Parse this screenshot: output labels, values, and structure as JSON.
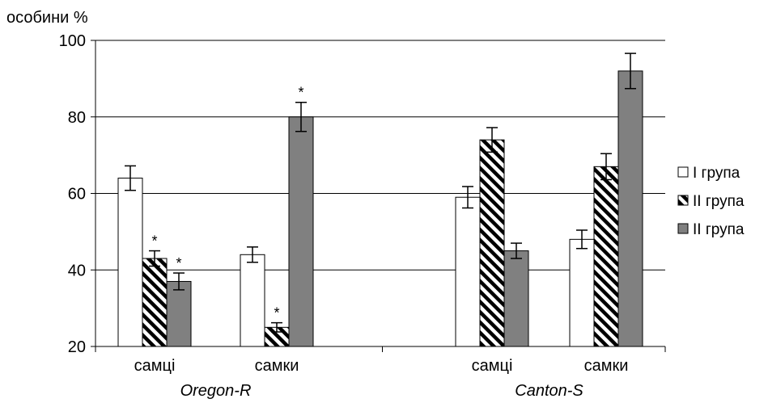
{
  "chart_data": {
    "type": "bar",
    "ylabel": "особини %",
    "ylim": [
      20,
      100
    ],
    "yticks": [
      20,
      40,
      60,
      80,
      100
    ],
    "grid": "horizontal",
    "legend_position": "right",
    "groups": [
      {
        "label": "Oregon-R",
        "categories": [
          "самці",
          "самки"
        ]
      },
      {
        "label": "Canton-S",
        "categories": [
          "самці",
          "самки"
        ]
      }
    ],
    "series": [
      {
        "name": "I група",
        "pattern": "white",
        "values": [
          64,
          44,
          59,
          48
        ],
        "errors": [
          3.2,
          2.0,
          2.8,
          2.4
        ],
        "stars": [
          false,
          false,
          false,
          false
        ]
      },
      {
        "name": "II група",
        "pattern": "hatched",
        "values": [
          43,
          25,
          74,
          67
        ],
        "errors": [
          2.0,
          1.2,
          3.2,
          3.4
        ],
        "stars": [
          true,
          true,
          false,
          false
        ]
      },
      {
        "name": "II група",
        "pattern": "gray",
        "values": [
          37,
          80,
          45,
          92
        ],
        "errors": [
          2.2,
          3.8,
          2.0,
          4.6
        ],
        "stars": [
          true,
          true,
          false,
          false
        ]
      }
    ],
    "annotation_marker": "*",
    "colors": {
      "white": "#ffffff",
      "gray": "#808080",
      "hatch": "#000000",
      "axis": "#000000",
      "grid": "#000000"
    }
  }
}
